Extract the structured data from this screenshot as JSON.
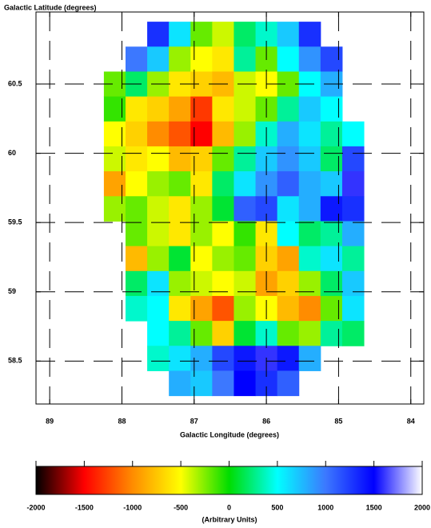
{
  "chart_data": {
    "type": "heatmap",
    "ylabel": "Galactic Latitude (degrees)",
    "xlabel": "Galactic Longitude (degrees)",
    "xlim": [
      89.19,
      83.82
    ],
    "xticks": [
      89,
      88,
      87,
      86,
      85,
      84
    ],
    "ylim": [
      58.19,
      61.02
    ],
    "yticks": [
      58.5,
      59,
      59.5,
      60,
      60.5
    ],
    "grid": true,
    "x": [
      88.1,
      87.8,
      87.5,
      87.2,
      86.9,
      86.6,
      86.3,
      86.0,
      85.7,
      85.4,
      85.1,
      84.8
    ],
    "y": [
      60.86,
      60.68,
      60.5,
      60.32,
      60.14,
      59.96,
      59.78,
      59.6,
      59.42,
      59.24,
      59.06,
      58.88,
      58.7,
      58.52,
      58.34
    ],
    "values": [
      [
        null,
        null,
        1300,
        600,
        -200,
        -400,
        200,
        400,
        700,
        1300,
        null,
        null
      ],
      [
        null,
        1000,
        700,
        -300,
        -500,
        -600,
        300,
        -200,
        500,
        900,
        1200,
        null
      ],
      [
        -200,
        200,
        -300,
        -600,
        -700,
        -800,
        -400,
        -500,
        -200,
        500,
        800,
        null
      ],
      [
        -100,
        -600,
        -700,
        -900,
        -1300,
        -600,
        -400,
        -200,
        300,
        700,
        500,
        null
      ],
      [
        -500,
        -700,
        -1000,
        -1200,
        -1500,
        -800,
        -300,
        400,
        800,
        600,
        300,
        500
      ],
      [
        -400,
        -600,
        -500,
        -800,
        -700,
        -200,
        300,
        700,
        900,
        700,
        200,
        1200
      ],
      [
        -900,
        -500,
        -300,
        -200,
        -600,
        200,
        600,
        900,
        1100,
        800,
        700,
        1600
      ],
      [
        -300,
        -200,
        -400,
        -600,
        -300,
        100,
        1100,
        1200,
        600,
        800,
        1400,
        1300
      ],
      [
        null,
        -200,
        -400,
        -600,
        -300,
        -500,
        -100,
        -600,
        500,
        200,
        300,
        800
      ],
      [
        null,
        -800,
        -300,
        100,
        -500,
        -300,
        -200,
        -700,
        -900,
        400,
        600,
        300
      ],
      [
        null,
        200,
        600,
        -300,
        -400,
        -500,
        -400,
        -900,
        -700,
        -300,
        200,
        700
      ],
      [
        null,
        400,
        500,
        -600,
        -900,
        -1200,
        -300,
        -500,
        -800,
        -1000,
        -200,
        600
      ],
      [
        null,
        null,
        500,
        300,
        -200,
        -700,
        100,
        400,
        -200,
        -300,
        300,
        200
      ],
      [
        null,
        null,
        400,
        600,
        800,
        1200,
        1400,
        1600,
        1400,
        800,
        null,
        null
      ],
      [
        null,
        null,
        null,
        800,
        700,
        1000,
        1500,
        1300,
        1100,
        null,
        null,
        null
      ]
    ],
    "colorbar": {
      "label": "(Arbitrary Units)",
      "lim": [
        -2000,
        2000
      ],
      "ticks": [
        -2000,
        -1500,
        -1000,
        -500,
        0,
        500,
        1000,
        1500,
        2000
      ],
      "colors": [
        "#000000",
        "#ff0000",
        "#ff8c00",
        "#ffff00",
        "#00dd00",
        "#00ffff",
        "#3c78ff",
        "#0000ff",
        "#ffffff"
      ]
    }
  }
}
